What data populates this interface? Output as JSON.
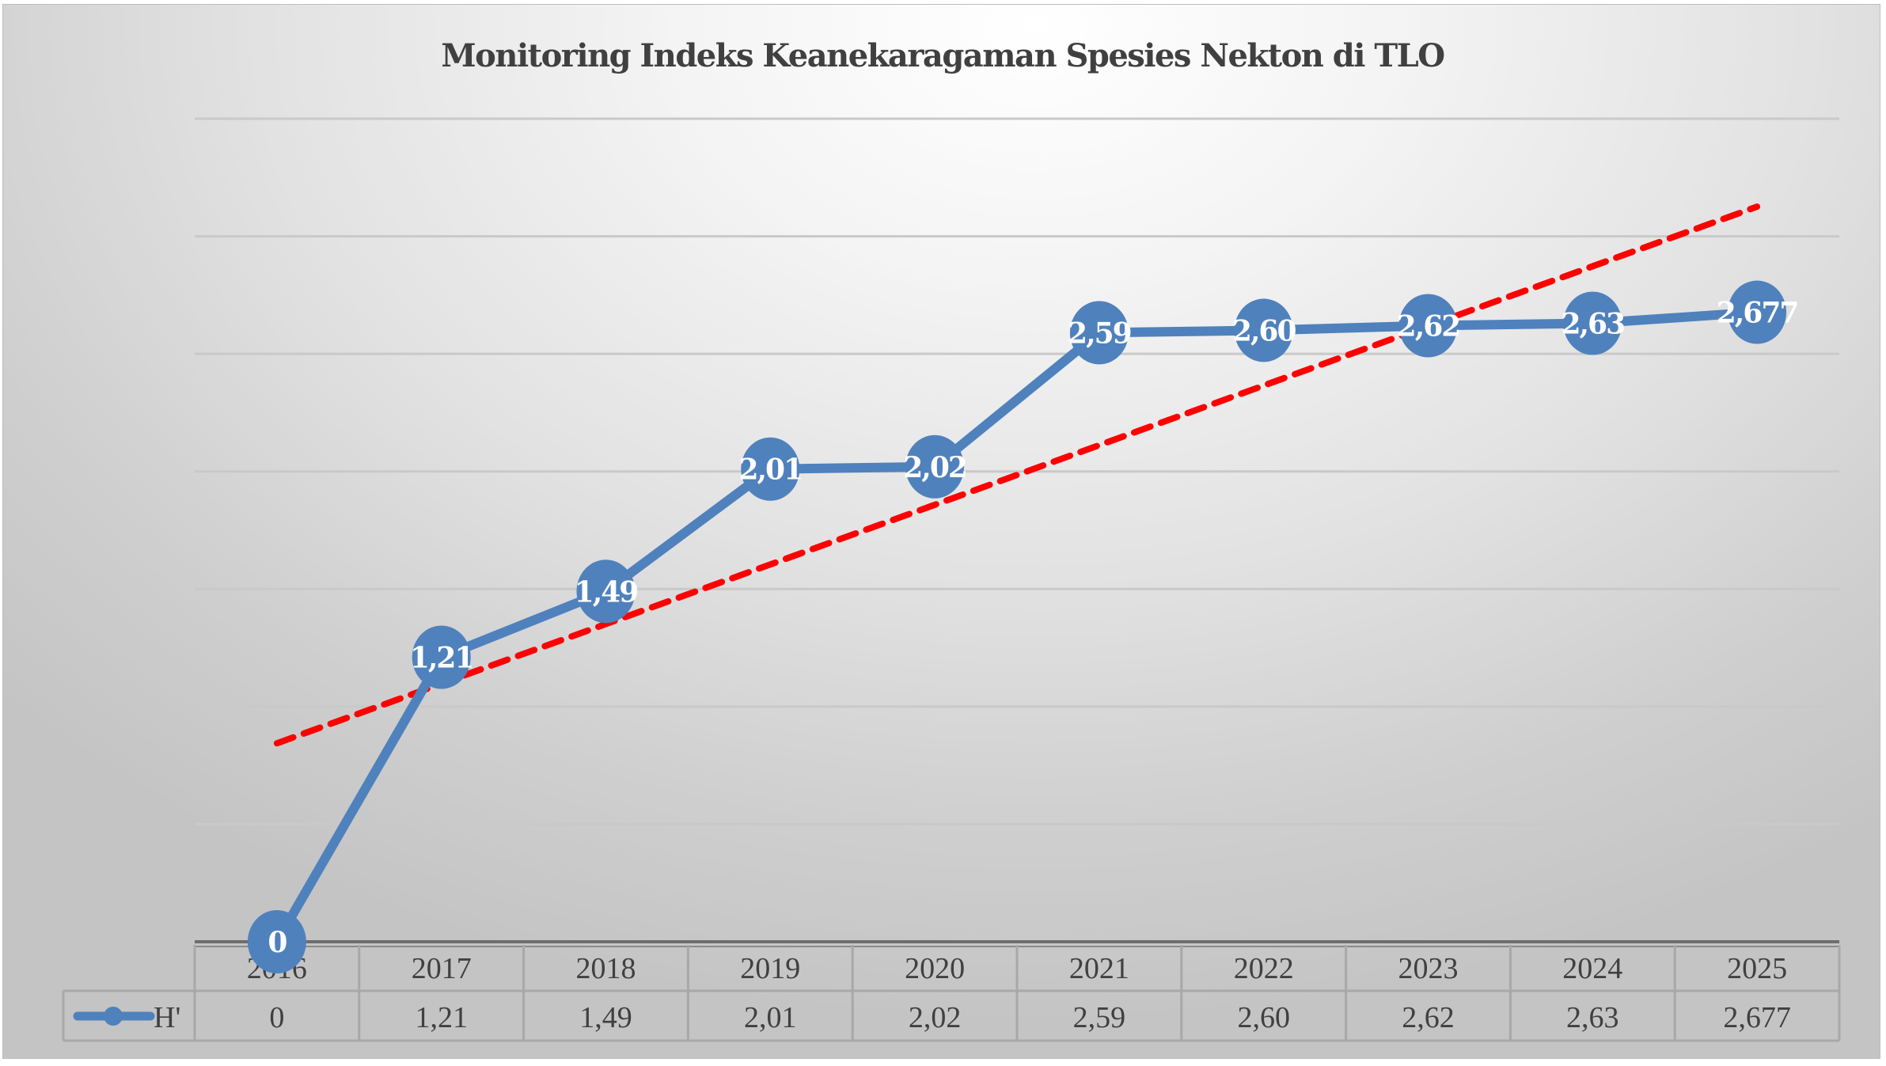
{
  "chart_data": {
    "type": "line",
    "title": "Monitoring Indeks Keanekaragaman Spesies Nekton di TLO",
    "categories": [
      "2016",
      "2017",
      "2018",
      "2019",
      "2020",
      "2021",
      "2022",
      "2023",
      "2024",
      "2025"
    ],
    "series": [
      {
        "name": "H'",
        "values": [
          0,
          1.21,
          1.49,
          2.01,
          2.02,
          2.59,
          2.6,
          2.62,
          2.63,
          2.677
        ],
        "labels": [
          "0",
          "1,21",
          "1,49",
          "2,01",
          "2,02",
          "2,59",
          "2,60",
          "2,62",
          "2,63",
          "2,677"
        ],
        "color": "#4f81bd",
        "markers": true
      }
    ],
    "trendline": {
      "type": "linear",
      "color": "#ff0000",
      "style": "dashed",
      "start_value": 0.844,
      "end_value": 3.126
    },
    "xlabel": "",
    "ylabel": "",
    "ylim": [
      0,
      3.5
    ],
    "y_gridlines": [
      0.5,
      1,
      1.5,
      2,
      2.5,
      3,
      3.5
    ],
    "y_tick_labels_visible": false,
    "grid": true,
    "legend": {
      "placement": "data-table-left",
      "entries": [
        "H'"
      ]
    },
    "data_table": {
      "header": [
        "2016",
        "2017",
        "2018",
        "2019",
        "2020",
        "2021",
        "2022",
        "2023",
        "2024",
        "2025"
      ],
      "rows": [
        {
          "label": "H'",
          "cells": [
            "0",
            "1,21",
            "1,49",
            "2,01",
            "2,02",
            "2,59",
            "2,60",
            "2,62",
            "2,63",
            "2,677"
          ]
        }
      ]
    }
  }
}
